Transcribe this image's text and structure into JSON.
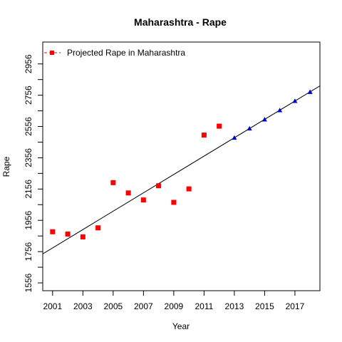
{
  "chart_data": {
    "type": "scatter",
    "title": "Maharashtra  -  Rape",
    "xlabel": "Year",
    "ylabel": "Rape",
    "xlim": [
      2000.35,
      2018.65
    ],
    "ylim": [
      1506,
      3096
    ],
    "x_ticks": [
      2001,
      2003,
      2005,
      2007,
      2009,
      2011,
      2013,
      2015,
      2017
    ],
    "x_tick_labels": [
      "2001",
      "2003",
      "2005",
      "2007",
      "2009",
      "2011",
      "2013",
      "2015",
      "2017"
    ],
    "y_ticks": [
      1556,
      1656,
      1756,
      1856,
      1956,
      2056,
      2156,
      2256,
      2356,
      2456,
      2556,
      2656,
      2756,
      2856,
      2956
    ],
    "y_tick_labels": [
      "1556",
      "1756",
      "1956",
      "2156",
      "2356",
      "2556",
      "2756",
      "2956"
    ],
    "grid": false,
    "legend": {
      "position": "top-left",
      "entries": [
        {
          "label": "Projected Rape  in  Maharashtra",
          "color": "#ff0000",
          "marker": "square"
        }
      ]
    },
    "series": [
      {
        "marker": "square",
        "color": "#ff0000",
        "x": [
          2001,
          2002,
          2003,
          2004,
          2005,
          2006,
          2007,
          2008,
          2009,
          2010,
          2011,
          2012
        ],
        "y": [
          1883,
          1868,
          1850,
          1908,
          2197,
          2131,
          2086,
          2177,
          2071,
          2157,
          2501,
          2558
        ]
      },
      {
        "marker": "triangle",
        "color": "#0000cc",
        "x": [
          2013,
          2014,
          2015,
          2016,
          2017,
          2018
        ],
        "y": [
          2484,
          2543,
          2601,
          2660,
          2719,
          2777
        ]
      }
    ],
    "trend_line": {
      "color": "#000000",
      "slope": 58.7,
      "intercept_year": 2013,
      "intercept_value": 2484,
      "x_range": [
        2000.35,
        2018.65
      ]
    }
  }
}
